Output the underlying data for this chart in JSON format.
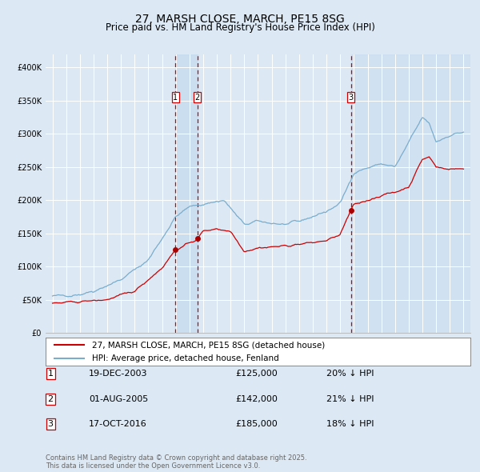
{
  "title": "27, MARSH CLOSE, MARCH, PE15 8SG",
  "subtitle": "Price paid vs. HM Land Registry's House Price Index (HPI)",
  "bg_color": "#dce8f4",
  "plot_bg_color": "#dce8f4",
  "grid_color": "#ffffff",
  "red_line_color": "#cc0000",
  "blue_line_color": "#7aadcc",
  "sale_marker_color": "#aa0000",
  "dashed_line_color": "#cc0000",
  "highlight_bg_color": "#c8ddf0",
  "legend_label_red": "27, MARSH CLOSE, MARCH, PE15 8SG (detached house)",
  "legend_label_blue": "HPI: Average price, detached house, Fenland",
  "footer_text": "Contains HM Land Registry data © Crown copyright and database right 2025.\nThis data is licensed under the Open Government Licence v3.0.",
  "sales": [
    {
      "num": 1,
      "date": "19-DEC-2003",
      "price": 125000,
      "pct": "20%",
      "direction": "↓",
      "x_year": 2003.97
    },
    {
      "num": 2,
      "date": "01-AUG-2005",
      "price": 142000,
      "pct": "21%",
      "direction": "↓",
      "x_year": 2005.58
    },
    {
      "num": 3,
      "date": "17-OCT-2016",
      "price": 185000,
      "pct": "18%",
      "direction": "↓",
      "x_year": 2016.79
    }
  ],
  "ylim": [
    0,
    420000
  ],
  "yticks": [
    0,
    50000,
    100000,
    150000,
    200000,
    250000,
    300000,
    350000,
    400000
  ],
  "xlim_start": 1994.5,
  "xlim_end": 2025.5
}
